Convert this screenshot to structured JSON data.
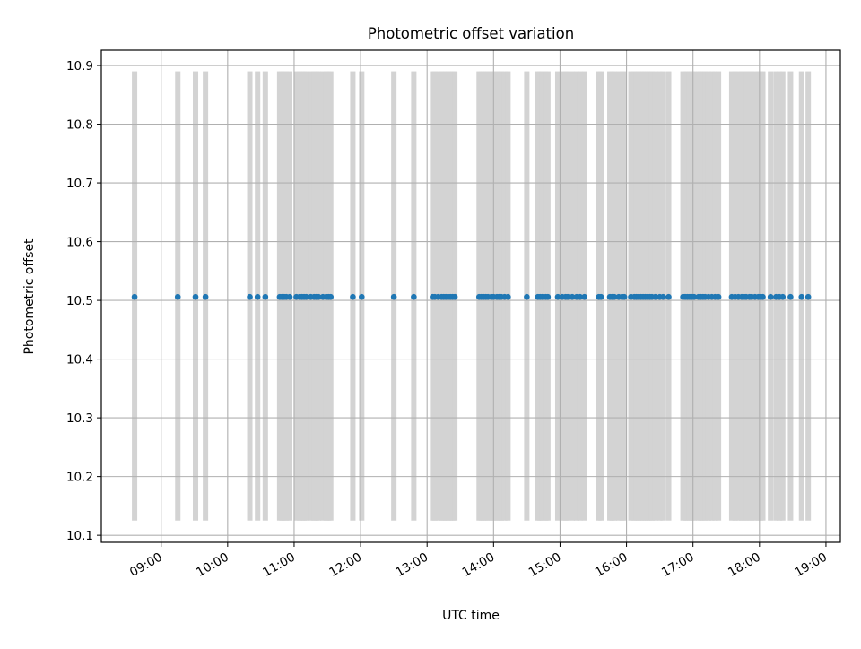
{
  "chart_data": {
    "type": "scatter",
    "title": "Photometric offset variation",
    "xlabel": "UTC time",
    "ylabel": "Photometric offset",
    "x_unit": "hours UTC",
    "xlim": [
      "08:06",
      "19:13"
    ],
    "ylim": [
      10.088,
      10.926
    ],
    "x_ticks": [
      "09:00",
      "10:00",
      "11:00",
      "12:00",
      "13:00",
      "14:00",
      "15:00",
      "16:00",
      "17:00",
      "18:00",
      "19:00"
    ],
    "y_ticks": [
      "10.1",
      "10.2",
      "10.3",
      "10.4",
      "10.5",
      "10.6",
      "10.7",
      "10.8",
      "10.9"
    ],
    "grid": true,
    "legend": "none",
    "marker_color": "#1f77b4",
    "bar_color": "#d3d3d3",
    "bar_range": [
      10.125,
      10.89
    ],
    "constant_value": 10.506,
    "observation_times": [
      "08:36",
      "09:15",
      "09:31",
      "09:40",
      "10:20",
      "10:27",
      "10:34",
      "10:47",
      "10:49",
      "10:51",
      "10:53",
      "10:56",
      "11:02",
      "11:05",
      "11:07",
      "11:09",
      "11:11",
      "11:15",
      "11:18",
      "11:20",
      "11:22",
      "11:26",
      "11:29",
      "11:31",
      "11:33",
      "11:53",
      "12:01",
      "12:30",
      "12:48",
      "13:05",
      "13:07",
      "13:10",
      "13:13",
      "13:15",
      "13:17",
      "13:19",
      "13:21",
      "13:23",
      "13:25",
      "13:47",
      "13:49",
      "13:51",
      "13:53",
      "13:55",
      "13:58",
      "14:00",
      "14:03",
      "14:05",
      "14:07",
      "14:10",
      "14:13",
      "14:30",
      "14:40",
      "14:42",
      "14:44",
      "14:47",
      "14:49",
      "14:58",
      "15:02",
      "15:05",
      "15:07",
      "15:11",
      "15:15",
      "15:18",
      "15:22",
      "15:35",
      "15:37",
      "15:45",
      "15:47",
      "15:49",
      "15:53",
      "15:56",
      "15:58",
      "16:04",
      "16:07",
      "16:09",
      "16:11",
      "16:13",
      "16:15",
      "16:17",
      "16:19",
      "16:21",
      "16:23",
      "16:26",
      "16:30",
      "16:33",
      "16:38",
      "16:51",
      "16:53",
      "16:55",
      "16:57",
      "16:59",
      "17:01",
      "17:05",
      "17:07",
      "17:09",
      "17:11",
      "17:14",
      "17:17",
      "17:20",
      "17:23",
      "17:35",
      "17:38",
      "17:41",
      "17:44",
      "17:46",
      "17:48",
      "17:51",
      "17:53",
      "17:56",
      "17:59",
      "18:01",
      "18:03",
      "18:10",
      "18:15",
      "18:18",
      "18:21",
      "18:28",
      "18:38",
      "18:44"
    ]
  }
}
